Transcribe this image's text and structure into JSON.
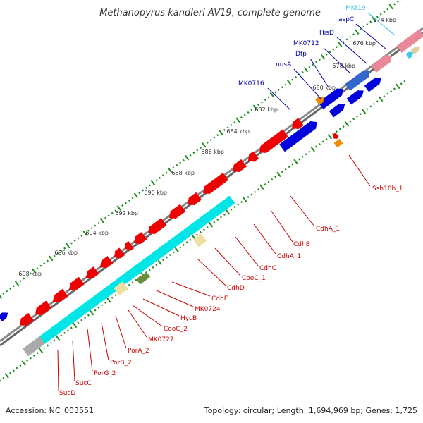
{
  "title": "Methanopyrus kandleri AV19, complete genome",
  "footer": {
    "accession": "Accession: NC_003551",
    "summary": "Topology: circular; Length: 1,694,969 bp; Genes: 1,725"
  },
  "colors": {
    "forward_gene": "#0000dd",
    "reverse_gene": "#ee0000",
    "trna": "#44c8ee",
    "tick": "#1e8c1e",
    "backbone": "#777777",
    "cyan_band": "#00e5e5",
    "label_blue": "#0000aa",
    "label_red": "#cc0000",
    "label_cyan": "#33bbee"
  },
  "scale_labels": [
    "674 kbp",
    "676 kbp",
    "678 kbp",
    "680 kbp",
    "682 kbp",
    "684 kbp",
    "686 kbp",
    "688 kbp",
    "690 kbp",
    "692 kbp",
    "694 kbp",
    "696 kbp",
    "698 kbp"
  ],
  "outer_labels": [
    {
      "text": "MKt19",
      "color": "cyan"
    },
    {
      "text": "aspC",
      "color": "blue"
    },
    {
      "text": "HisD",
      "color": "blue"
    },
    {
      "text": "MK0712",
      "color": "blue"
    },
    {
      "text": "Dfp",
      "color": "blue"
    },
    {
      "text": "nusA",
      "color": "blue"
    },
    {
      "text": "MK0716",
      "color": "blue"
    }
  ],
  "inner_labels": [
    {
      "text": "Ssh10b_1",
      "color": "red"
    },
    {
      "text": "CdhA_1",
      "color": "red"
    },
    {
      "text": "CdhB",
      "color": "red"
    },
    {
      "text": "CdhA_1",
      "color": "red"
    },
    {
      "text": "CdhC",
      "color": "red"
    },
    {
      "text": "CooC_1",
      "color": "red"
    },
    {
      "text": "CdhD",
      "color": "red"
    },
    {
      "text": "CdhE",
      "color": "red"
    },
    {
      "text": "MK0724",
      "color": "red"
    },
    {
      "text": "HycB",
      "color": "red"
    },
    {
      "text": "CooC_2",
      "color": "red"
    },
    {
      "text": "MK0727",
      "color": "red"
    },
    {
      "text": "PorA_2",
      "color": "red"
    },
    {
      "text": "PorB_2",
      "color": "red"
    },
    {
      "text": "PorG_2",
      "color": "red"
    },
    {
      "text": "SucC",
      "color": "red"
    },
    {
      "text": "SucD",
      "color": "red"
    }
  ]
}
